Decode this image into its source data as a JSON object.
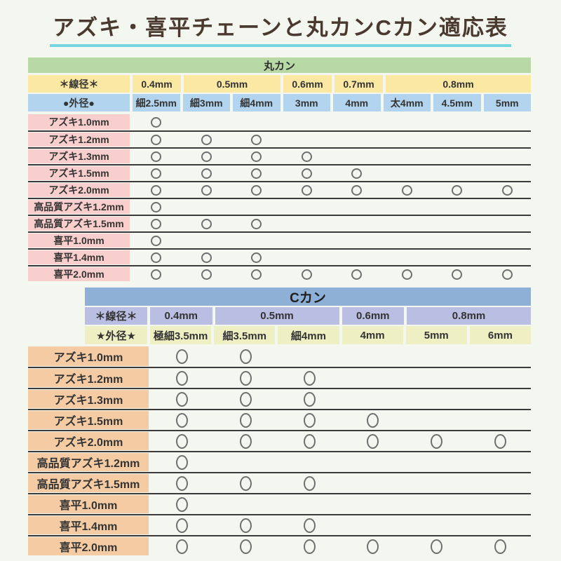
{
  "page": {
    "title": "アズキ・喜平チェーンと丸カンCカン適応表"
  },
  "mark_symbol": "○",
  "colors": {
    "background": "#f4f6f0",
    "title_text": "#4a392f",
    "title_underline": "#74d6e1",
    "marukan_header_green": "#b8d9a5",
    "marukan_wire_yellow": "#fae8a3",
    "marukan_od_blue": "#b2d4ee",
    "marukan_row_pink": "#f8cfcd",
    "ckan_header_blue": "#8fb0d6",
    "ckan_wire_lavender": "#babee2",
    "ckan_od_yellowgreen": "#eef0c3",
    "ckan_row_peach": "#f4cba3",
    "row_separator": "#3a3a3a",
    "circle_outline": "#6f6f6f"
  },
  "tables": [
    {
      "id": "marukan",
      "title": "丸カン",
      "wire_label": "＊線径＊",
      "od_label": "●外径●",
      "wire_groups": [
        {
          "label": "0.4mm",
          "span": 1
        },
        {
          "label": "0.5mm",
          "span": 2
        },
        {
          "label": "0.6mm",
          "span": 1
        },
        {
          "label": "0.7mm",
          "span": 1
        },
        {
          "label": "0.8mm",
          "span": 3
        }
      ],
      "od_cols": [
        "細2.5mm",
        "細3mm",
        "細4mm",
        "3mm",
        "4mm",
        "太4mm",
        "4.5mm",
        "5mm"
      ],
      "rows": [
        {
          "label": "アズキ1.0mm",
          "marks": [
            1,
            0,
            0,
            0,
            0,
            0,
            0,
            0
          ]
        },
        {
          "label": "アズキ1.2mm",
          "marks": [
            1,
            1,
            1,
            0,
            0,
            0,
            0,
            0
          ]
        },
        {
          "label": "アズキ1.3mm",
          "marks": [
            1,
            1,
            1,
            1,
            0,
            0,
            0,
            0
          ]
        },
        {
          "label": "アズキ1.5mm",
          "marks": [
            1,
            1,
            1,
            1,
            1,
            0,
            0,
            0
          ]
        },
        {
          "label": "アズキ2.0mm",
          "marks": [
            1,
            1,
            1,
            1,
            1,
            1,
            1,
            1
          ]
        },
        {
          "label": "高品質アズキ1.2mm",
          "marks": [
            1,
            0,
            0,
            0,
            0,
            0,
            0,
            0
          ]
        },
        {
          "label": "高品質アズキ1.5mm",
          "marks": [
            1,
            1,
            1,
            0,
            0,
            0,
            0,
            0
          ]
        },
        {
          "label": "喜平1.0mm",
          "marks": [
            1,
            0,
            0,
            0,
            0,
            0,
            0,
            0
          ]
        },
        {
          "label": "喜平1.4mm",
          "marks": [
            1,
            1,
            1,
            0,
            0,
            0,
            0,
            0
          ]
        },
        {
          "label": "喜平2.0mm",
          "marks": [
            1,
            1,
            1,
            1,
            1,
            1,
            1,
            1
          ]
        }
      ]
    },
    {
      "id": "ckan",
      "title": "Cカン",
      "wire_label": "＊線径＊",
      "od_label": "★外径★",
      "wire_groups": [
        {
          "label": "0.4mm",
          "span": 1
        },
        {
          "label": "0.5mm",
          "span": 2
        },
        {
          "label": "0.6mm",
          "span": 1
        },
        {
          "label": "0.8mm",
          "span": 2
        }
      ],
      "od_cols": [
        "極細3.5mm",
        "細3.5mm",
        "細4mm",
        "4mm",
        "5mm",
        "6mm"
      ],
      "rows": [
        {
          "label": "アズキ1.0mm",
          "marks": [
            1,
            1,
            0,
            0,
            0,
            0
          ]
        },
        {
          "label": "アズキ1.2mm",
          "marks": [
            1,
            1,
            1,
            0,
            0,
            0
          ]
        },
        {
          "label": "アズキ1.3mm",
          "marks": [
            1,
            1,
            1,
            0,
            0,
            0
          ]
        },
        {
          "label": "アズキ1.5mm",
          "marks": [
            1,
            1,
            1,
            1,
            0,
            0
          ]
        },
        {
          "label": "アズキ2.0mm",
          "marks": [
            1,
            1,
            1,
            1,
            1,
            1
          ]
        },
        {
          "label": "高品質アズキ1.2mm",
          "marks": [
            1,
            0,
            0,
            0,
            0,
            0
          ]
        },
        {
          "label": "高品質アズキ1.5mm",
          "marks": [
            1,
            1,
            1,
            0,
            0,
            0
          ]
        },
        {
          "label": "喜平1.0mm",
          "marks": [
            1,
            0,
            0,
            0,
            0,
            0
          ]
        },
        {
          "label": "喜平1.4mm",
          "marks": [
            1,
            1,
            1,
            0,
            0,
            0
          ]
        },
        {
          "label": "喜平2.0mm",
          "marks": [
            1,
            1,
            1,
            1,
            1,
            1
          ]
        }
      ]
    }
  ]
}
